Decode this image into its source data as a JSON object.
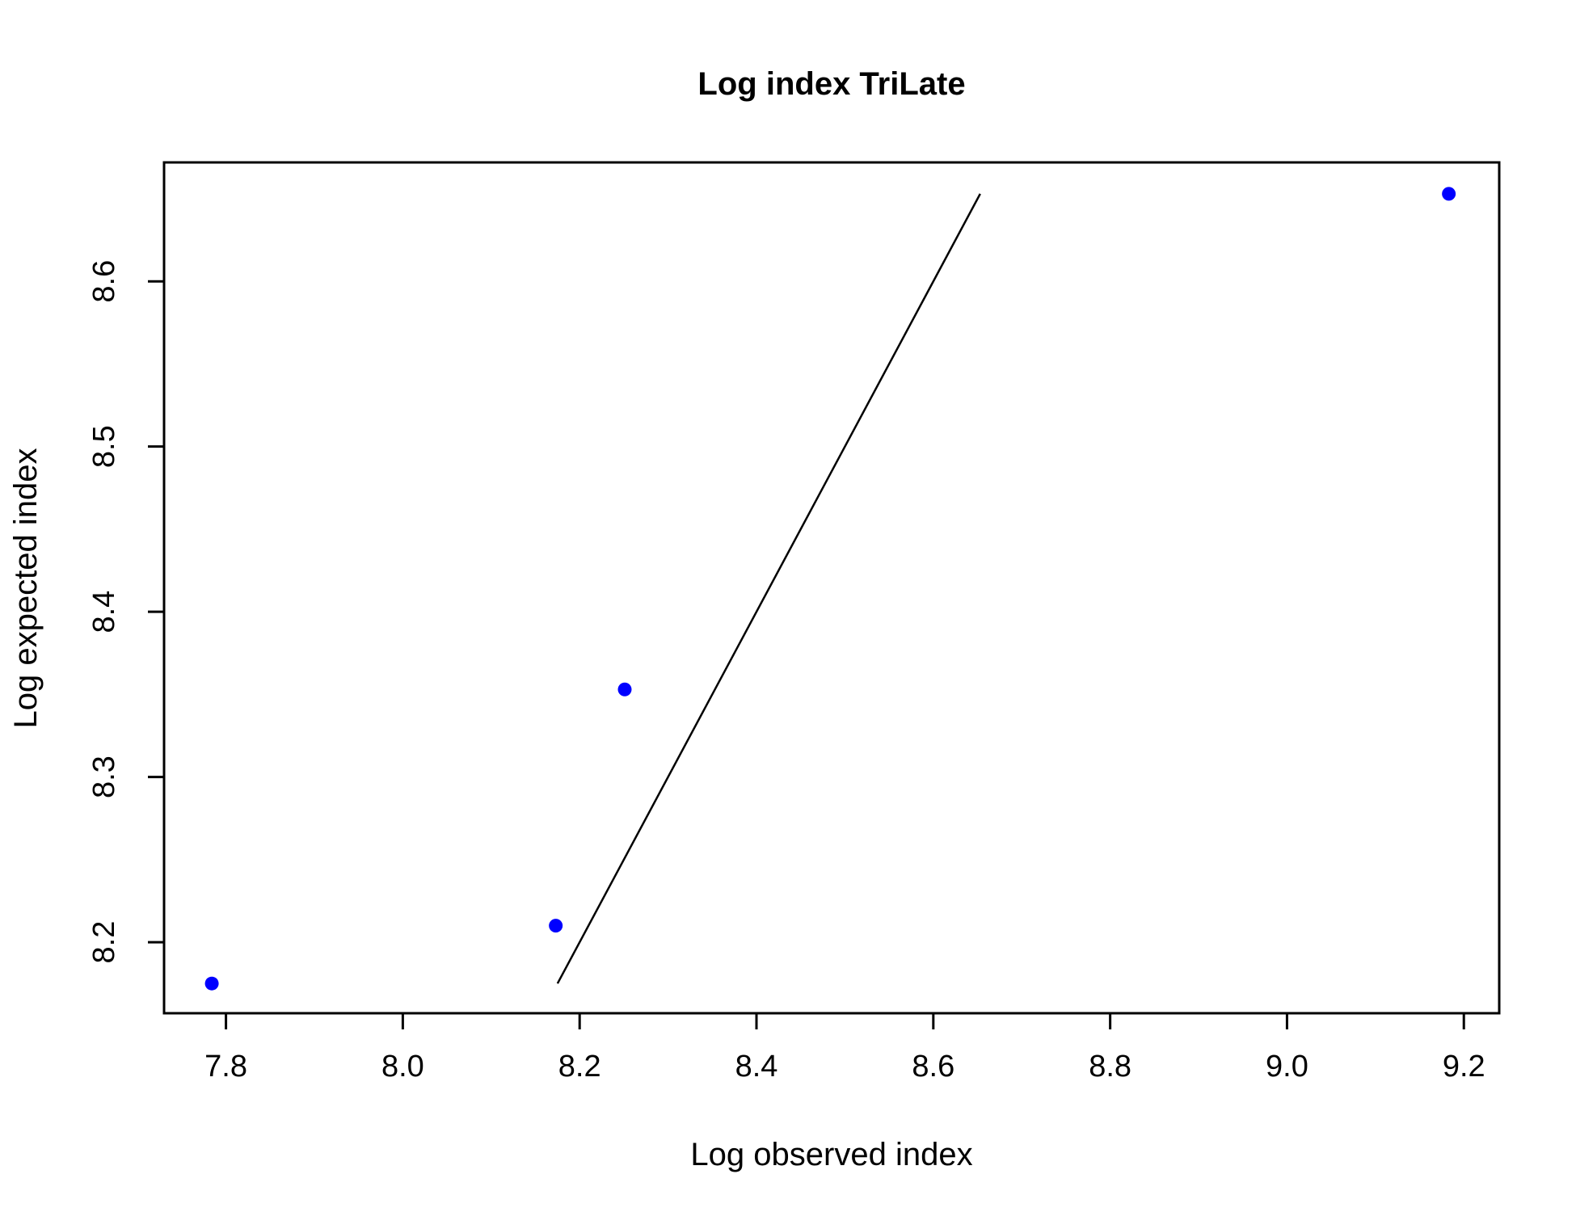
{
  "chart_data": {
    "type": "scatter",
    "title": "Log index TriLate",
    "xlabel": "Log observed index",
    "ylabel": "Log expected index",
    "xlim": [
      7.73,
      9.24
    ],
    "ylim": [
      8.157,
      8.672
    ],
    "x_ticks": [
      "7.8",
      "8.0",
      "8.2",
      "8.4",
      "8.6",
      "8.8",
      "9.0",
      "9.2"
    ],
    "y_ticks": [
      "8.2",
      "8.3",
      "8.4",
      "8.5",
      "8.6"
    ],
    "grid": false,
    "legend": "none",
    "series": [
      {
        "points": [
          {
            "x": 7.784,
            "y": 8.175
          },
          {
            "x": 8.173,
            "y": 8.21
          },
          {
            "x": 8.251,
            "y": 8.353
          },
          {
            "x": 9.183,
            "y": 8.653
          }
        ],
        "color": "#0000ff"
      }
    ],
    "reference_line": {
      "from": {
        "x": 8.175,
        "y": 8.175
      },
      "to": {
        "x": 8.653,
        "y": 8.653
      },
      "color": "#000000"
    }
  }
}
